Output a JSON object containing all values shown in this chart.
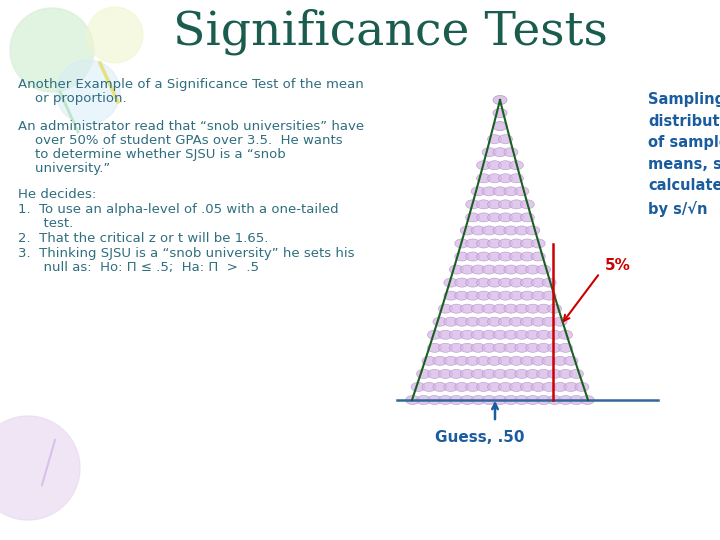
{
  "title": "Significance Tests",
  "title_color": "#1a5c4e",
  "title_fontsize": 34,
  "bg_color": "#ffffff",
  "body_text_color": "#2e6e7e",
  "sidebar_color": "#1a5c9e",
  "line1": "Another Example of a Significance Test of the mean",
  "line2": "    or proportion.",
  "para2_l1": "An administrator read that “snob universities” have",
  "para2_l2": "    over 50% of student GPAs over 3.5.  He wants",
  "para2_l3": "    to determine whether SJSU is a “snob",
  "para2_l4": "    university.”",
  "para3_title": "He decides:",
  "item1a": "1.  To use an alpha-level of .05 with a one-tailed",
  "item1b": "      test.",
  "item2": "2.  That the critical z or t will be 1.65.",
  "item3a": "3.  Thinking SJSU is a “snob university” he sets his",
  "item3b": "      null as:  Ho: Π ≤ .5;  Ha: Π  >  .5",
  "guess_label": "Guess, .50",
  "pct_label": "5%",
  "bell_color": "#d8b8e8",
  "bell_edge_color": "#b090c8",
  "bell_line_color": "#1a6020",
  "red_line_color": "#cc0000",
  "base_line_color": "#336699",
  "guess_arrow_color": "#1a5c9e",
  "sidebar_text": "Sampling\ndistribution\nof sample\nmeans, s.e.\ncalculated\nby s/√n"
}
